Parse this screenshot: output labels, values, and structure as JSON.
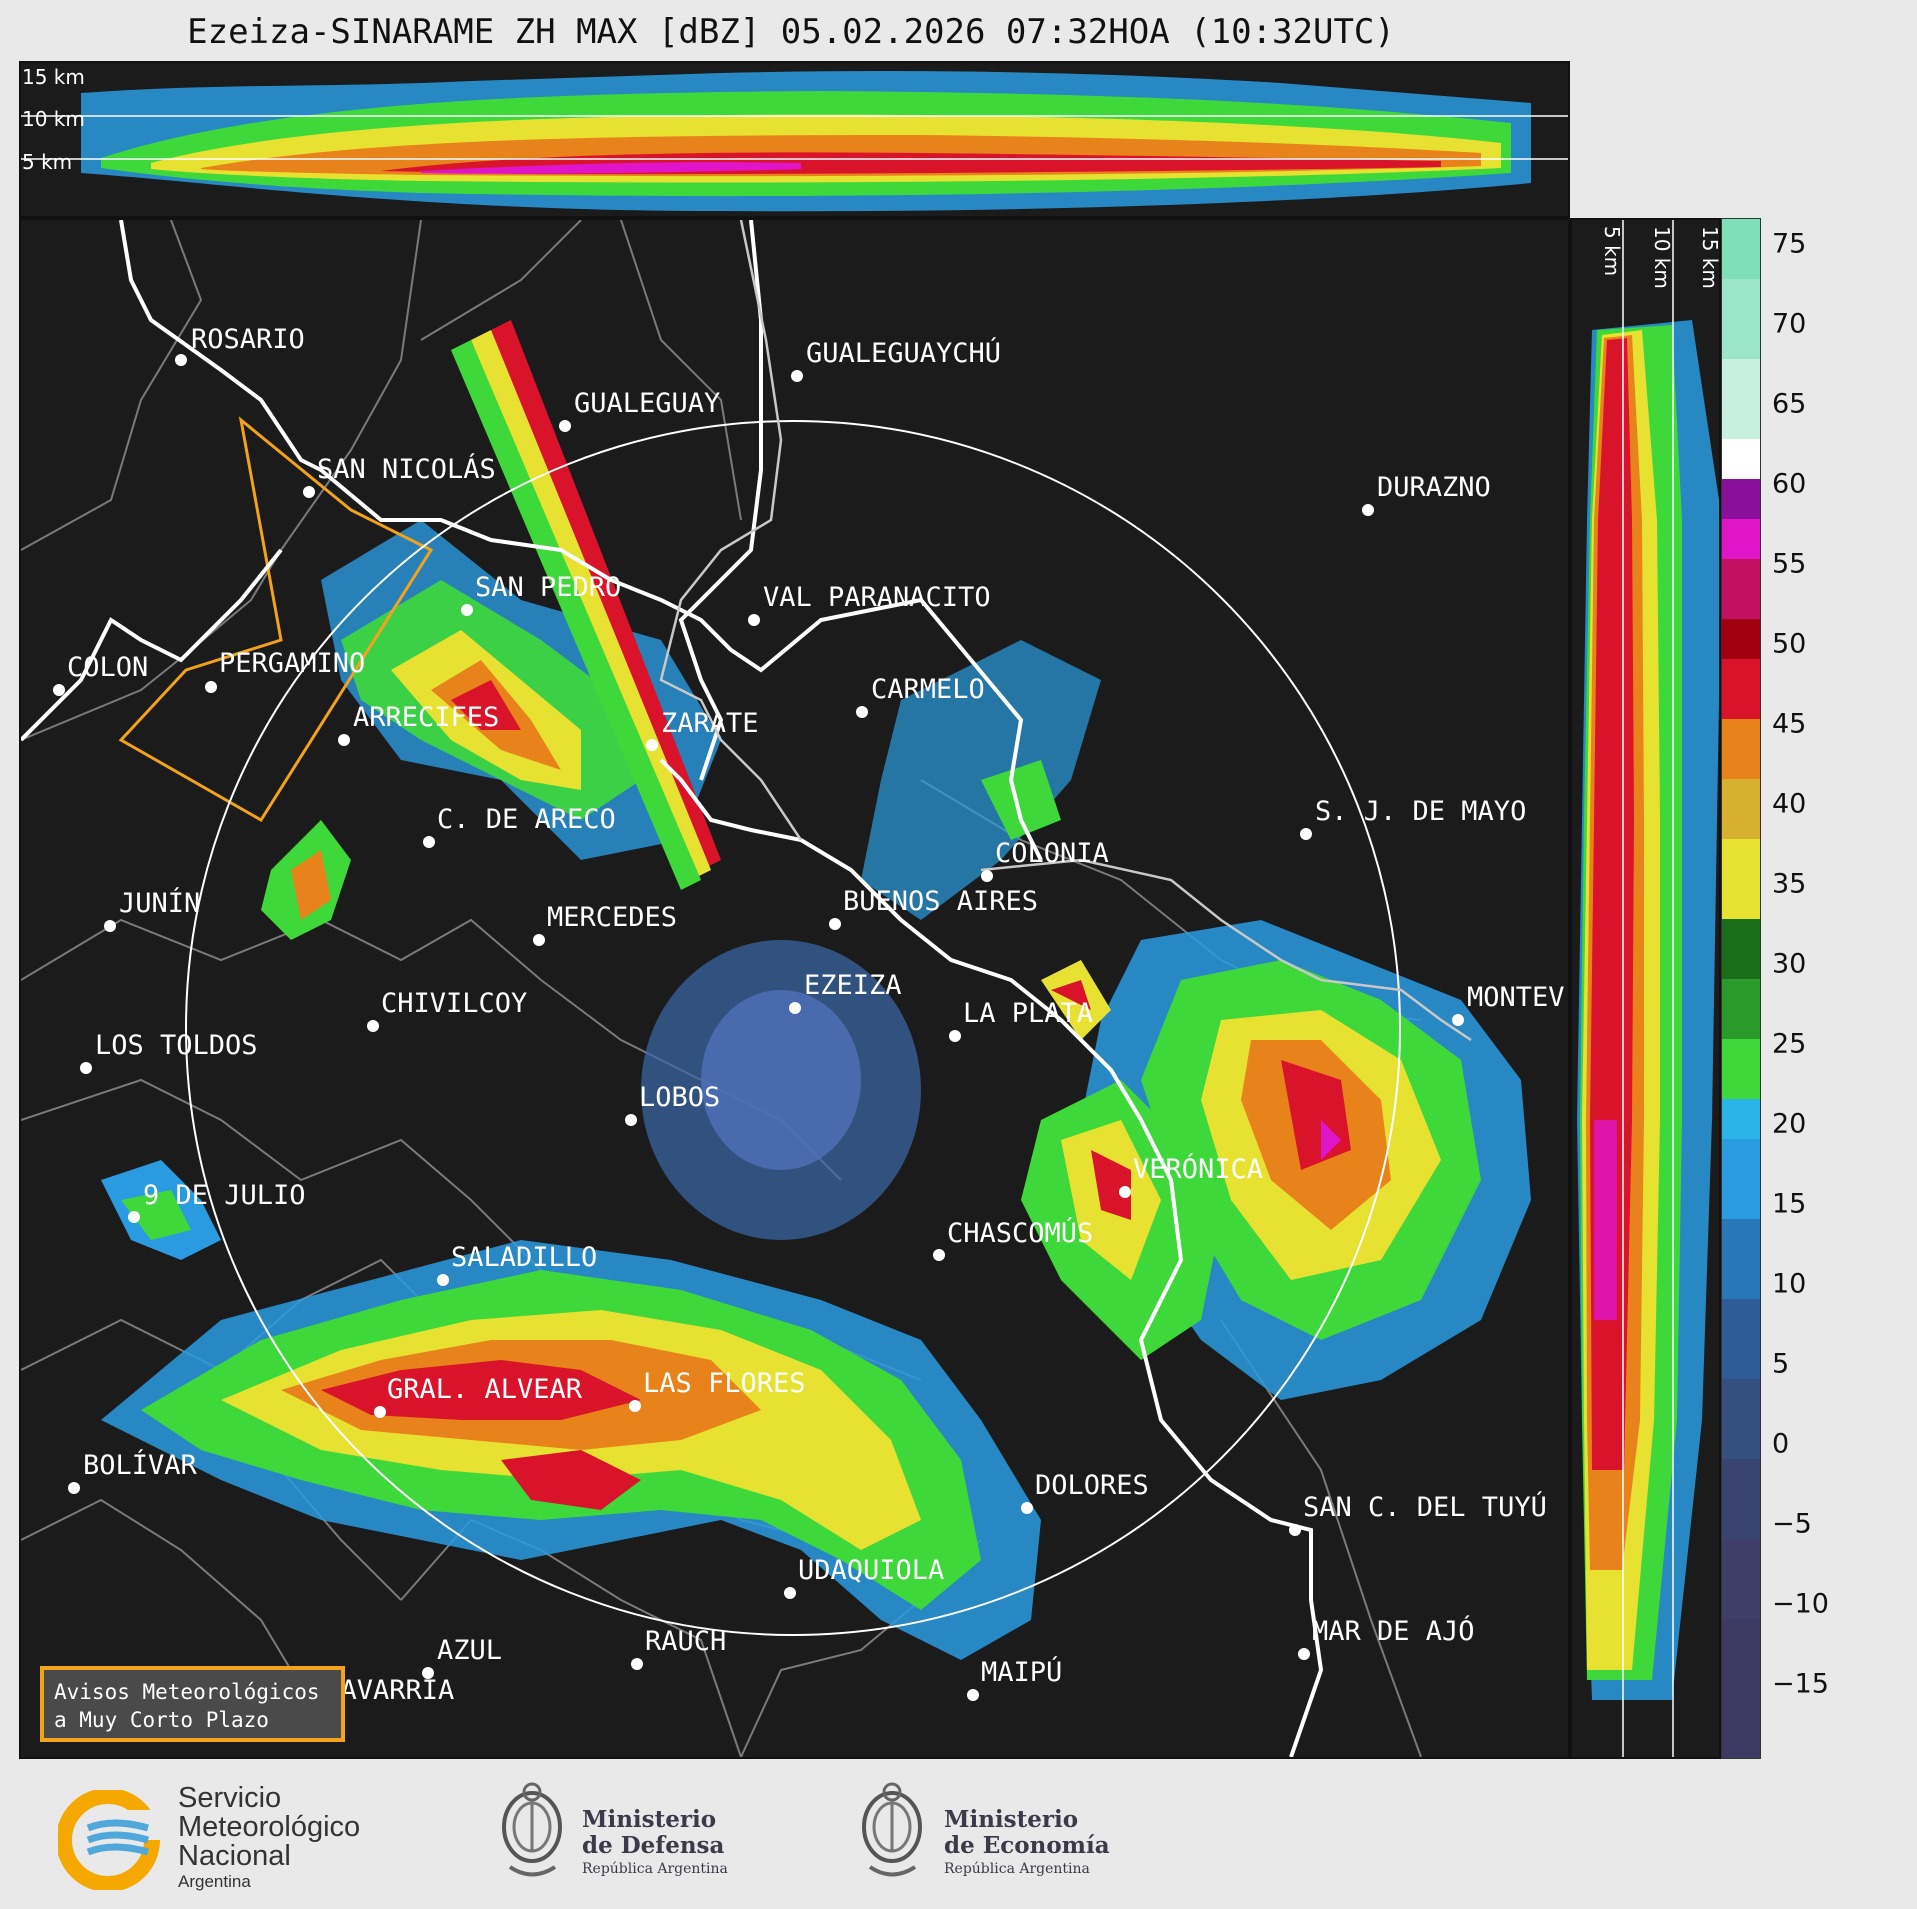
{
  "title": "Ezeiza-SINARAME ZH MAX [dBZ] 05.02.2026 07:32HOA (10:32UTC)",
  "top_panel": {
    "levels": [
      "15 km",
      "10 km",
      "5 km"
    ]
  },
  "side_panel": {
    "levels": [
      "5 km",
      "10 km",
      "15 km"
    ]
  },
  "colorbar": {
    "ticks": [
      "75",
      "70",
      "65",
      "60",
      "55",
      "50",
      "45",
      "40",
      "35",
      "30",
      "25",
      "20",
      "15",
      "10",
      "5",
      "0",
      "−5",
      "−10",
      "−15"
    ]
  },
  "cities": [
    {
      "name": "ROSARIO"
    },
    {
      "name": "GUALEGUAYCHÚ"
    },
    {
      "name": "GUALEGUAY"
    },
    {
      "name": "SAN NICOLÁS"
    },
    {
      "name": "DURAZNO"
    },
    {
      "name": "SAN PEDRO"
    },
    {
      "name": "VAL PARANACITO"
    },
    {
      "name": "COLON"
    },
    {
      "name": "PERGAMINO"
    },
    {
      "name": "CARMELO"
    },
    {
      "name": "ARRECIFES"
    },
    {
      "name": "ZARATE"
    },
    {
      "name": "C. DE ARECO"
    },
    {
      "name": "S. J. DE MAYO"
    },
    {
      "name": "COLONIA"
    },
    {
      "name": "JUNÍN"
    },
    {
      "name": "MERCEDES"
    },
    {
      "name": "BUENOS AIRES"
    },
    {
      "name": "EZEIZA"
    },
    {
      "name": "MONTEV"
    },
    {
      "name": "CHIVILCOY"
    },
    {
      "name": "LA PLATA"
    },
    {
      "name": "LOS TOLDOS"
    },
    {
      "name": "LOBOS"
    },
    {
      "name": "VERÓNICA"
    },
    {
      "name": "9 DE JULIO"
    },
    {
      "name": "CHASCOMÚS"
    },
    {
      "name": "SALADILLO"
    },
    {
      "name": "GRAL. ALVEAR"
    },
    {
      "name": "LAS FLORES"
    },
    {
      "name": "BOLÍVAR"
    },
    {
      "name": "DOLORES"
    },
    {
      "name": "SAN C. DEL TUYÚ"
    },
    {
      "name": "UDAQUIOLA"
    },
    {
      "name": "MAR DE AJÓ"
    },
    {
      "name": "AZUL"
    },
    {
      "name": "RAUCH"
    },
    {
      "name": "MAIPÚ"
    },
    {
      "name": "OLAVARRÍA"
    }
  ],
  "warning_box": {
    "line1": "Avisos Meteorológicos",
    "line2": "a Muy Corto Plazo"
  },
  "footer": {
    "smn": {
      "line1": "Servicio",
      "line2": "Meteorológico",
      "line3": "Nacional",
      "line4": "Argentina"
    },
    "defensa": {
      "line1": "Ministerio",
      "line2": "de Defensa",
      "line3": "República Argentina"
    },
    "economia": {
      "line1": "Ministerio",
      "line2": "de Economía",
      "line3": "República Argentina"
    }
  },
  "colors": {
    "background": "#1b1b1b",
    "coast": "#ffffff",
    "range_ring": "#ffffff",
    "warning": "#f3a31b"
  }
}
